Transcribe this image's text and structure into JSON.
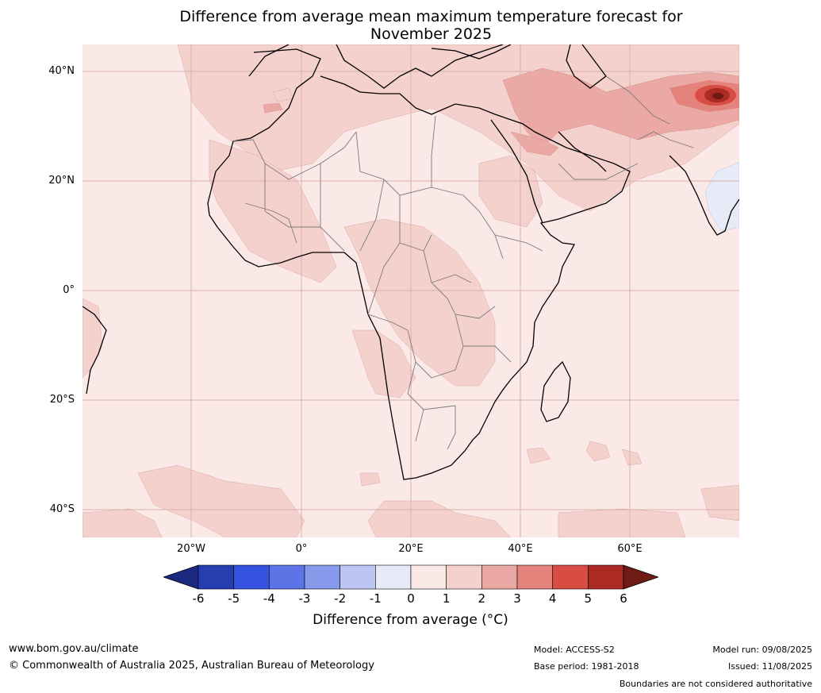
{
  "title_line1": "Difference from average mean maximum temperature forecast for",
  "title_line2": "November 2025",
  "lat_labels": [
    "40°N",
    "20°N",
    "0°",
    "20°S",
    "40°S"
  ],
  "lon_labels": [
    "20°W",
    "0°",
    "20°E",
    "40°E",
    "60°E"
  ],
  "legend": {
    "ticks": [
      "-6",
      "-5",
      "-4",
      "-3",
      "-2",
      "-1",
      "0",
      "1",
      "2",
      "3",
      "4",
      "5",
      "6"
    ],
    "colors": [
      "#1b2a80",
      "#263fb0",
      "#3452e0",
      "#5c74e6",
      "#8799ea",
      "#bdc6f2",
      "#e7ebf8",
      "#fbe9e7",
      "#f5d1ce",
      "#eba9a6",
      "#e4827c",
      "#d94c44",
      "#ab2a24",
      "#6e1a16"
    ],
    "label": "Difference from average (°C)"
  },
  "footer": {
    "url": "www.bom.gov.au/climate",
    "copyright": "© Commonwealth of Australia 2025, Australian Bureau of Meteorology",
    "model": "Model: ACCESS-S2",
    "base_period": "Base period: 1981-2018",
    "model_run": "Model run: 09/08/2025",
    "issued": "Issued: 11/08/2025",
    "disclaimer": "Boundaries are not considered authoritative"
  }
}
